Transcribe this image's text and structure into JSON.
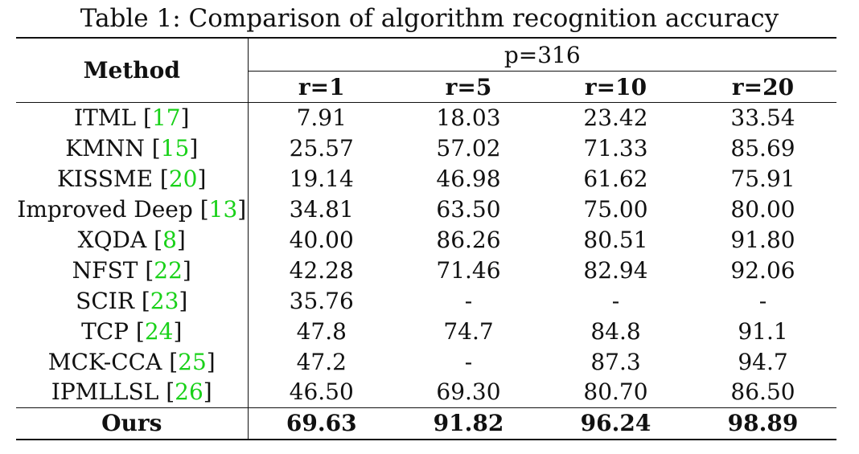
{
  "caption": "Table 1: Comparison of algorithm recognition accuracy",
  "header": {
    "method": "Method",
    "group": "p=316",
    "columns": [
      "r=1",
      "r=5",
      "r=10",
      "r=20"
    ]
  },
  "rows": [
    {
      "method": "ITML",
      "ref": "17",
      "values": [
        "7.91",
        "18.03",
        "23.42",
        "33.54"
      ]
    },
    {
      "method": "KMNN",
      "ref": "15",
      "values": [
        "25.57",
        "57.02",
        "71.33",
        "85.69"
      ]
    },
    {
      "method": "KISSME",
      "ref": "20",
      "values": [
        "19.14",
        "46.98",
        "61.62",
        "75.91"
      ]
    },
    {
      "method": "Improved Deep",
      "ref": "13",
      "values": [
        "34.81",
        "63.50",
        "75.00",
        "80.00"
      ]
    },
    {
      "method": "XQDA",
      "ref": "8",
      "values": [
        "40.00",
        "86.26",
        "80.51",
        "91.80"
      ]
    },
    {
      "method": "NFST",
      "ref": "22",
      "values": [
        "42.28",
        "71.46",
        "82.94",
        "92.06"
      ]
    },
    {
      "method": "SCIR",
      "ref": "23",
      "values": [
        "35.76",
        "-",
        "-",
        "-"
      ]
    },
    {
      "method": "TCP",
      "ref": "24",
      "values": [
        "47.8",
        "74.7",
        "84.8",
        "91.1"
      ]
    },
    {
      "method": "MCK-CCA",
      "ref": "25",
      "values": [
        "47.2",
        "-",
        "87.3",
        "94.7"
      ]
    },
    {
      "method": "IPMLLSL",
      "ref": "26",
      "values": [
        "46.50",
        "69.30",
        "80.70",
        "86.50"
      ]
    }
  ],
  "ours": {
    "method": "Ours",
    "values": [
      "69.63",
      "91.82",
      "96.24",
      "98.89"
    ]
  },
  "colors": {
    "citation": "#19d119",
    "text": "#111111"
  }
}
